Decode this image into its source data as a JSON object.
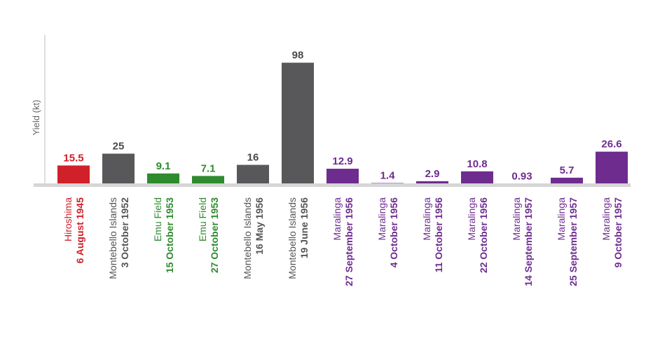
{
  "chart_data": {
    "type": "bar",
    "title": "",
    "ylabel": "Yield  (kt)",
    "xlabel": "",
    "ylim": [
      0,
      120
    ],
    "grid": false,
    "colors": {
      "red": "#d0202a",
      "gray": "#58585a",
      "green": "#2e8b2e",
      "purple": "#6e2c8f"
    },
    "bars": [
      {
        "place": "Hiroshima",
        "date": "6 August 1945",
        "value": 15.5,
        "label": "15.5",
        "color": "red"
      },
      {
        "place": "Montebello Islands",
        "date": "3 October 1952",
        "value": 25,
        "label": "25",
        "color": "gray"
      },
      {
        "place": "Emu Field",
        "date": "15 October 1953",
        "value": 9.1,
        "label": "9.1",
        "color": "green"
      },
      {
        "place": "Emu Field",
        "date": "27 October 1953",
        "value": 7.1,
        "label": "7.1",
        "color": "green"
      },
      {
        "place": "Montebello Islands",
        "date": "16 May 1956",
        "value": 16,
        "label": "16",
        "color": "gray"
      },
      {
        "place": "Montebello Islands",
        "date": "19 June 1956",
        "value": 98,
        "label": "98",
        "color": "gray"
      },
      {
        "place": "Maralinga",
        "date": "27 September 1956",
        "value": 12.9,
        "label": "12.9",
        "color": "purple"
      },
      {
        "place": "Maralinga",
        "date": "4 October 1956",
        "value": 1.4,
        "label": "1.4",
        "color": "purple"
      },
      {
        "place": "Maralinga",
        "date": "11 October 1956",
        "value": 2.9,
        "label": "2.9",
        "color": "purple"
      },
      {
        "place": "Maralinga",
        "date": "22 October 1956",
        "value": 10.8,
        "label": "10.8",
        "color": "purple"
      },
      {
        "place": "Maralinga",
        "date": "14 September 1957",
        "value": 0.93,
        "label": "0.93",
        "color": "purple"
      },
      {
        "place": "Maralinga",
        "date": "25 September 1957",
        "value": 5.7,
        "label": "5.7",
        "color": "purple"
      },
      {
        "place": "Maralinga",
        "date": "9 October 1957",
        "value": 26.6,
        "label": "26.6",
        "color": "purple"
      }
    ]
  }
}
